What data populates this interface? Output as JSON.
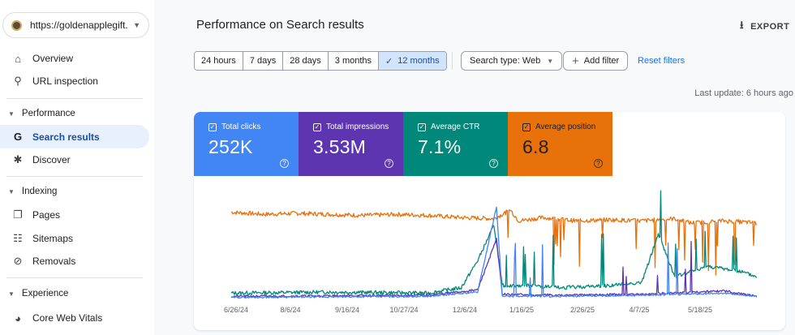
{
  "sidebar": {
    "property_url": "https://goldenapplegift...",
    "items": [
      {
        "label": "Overview",
        "icon": "home-icon"
      },
      {
        "label": "URL inspection",
        "icon": "search-icon"
      }
    ],
    "sections": [
      {
        "label": "Performance",
        "items": [
          {
            "label": "Search results",
            "icon": "google-g-icon",
            "active": true
          },
          {
            "label": "Discover",
            "icon": "asterisk-icon"
          }
        ]
      },
      {
        "label": "Indexing",
        "items": [
          {
            "label": "Pages",
            "icon": "pages-icon"
          },
          {
            "label": "Sitemaps",
            "icon": "sitemap-icon"
          },
          {
            "label": "Removals",
            "icon": "eye-off-icon"
          }
        ]
      },
      {
        "label": "Experience",
        "items": [
          {
            "label": "Core Web Vitals",
            "icon": "gauge-icon"
          }
        ]
      }
    ]
  },
  "header": {
    "title": "Performance on Search results",
    "export_label": "EXPORT"
  },
  "filters": {
    "ranges": [
      "24 hours",
      "7 days",
      "28 days",
      "3 months",
      "12 months"
    ],
    "selected_range": "12 months",
    "search_type": "Search type: Web",
    "add_filter": "Add filter",
    "reset": "Reset filters",
    "last_update": "Last update: 6 hours ago"
  },
  "metrics": [
    {
      "label": "Total clicks",
      "value": "252K",
      "color": "#4285f4"
    },
    {
      "label": "Total impressions",
      "value": "3.53M",
      "color": "#5e35b1"
    },
    {
      "label": "Average CTR",
      "value": "7.1%",
      "color": "#00897b"
    },
    {
      "label": "Average position",
      "value": "6.8",
      "color": "#e8710a"
    }
  ],
  "chart_data": {
    "type": "line",
    "x_tick_labels": [
      "6/26/24",
      "8/6/24",
      "9/16/24",
      "10/27/24",
      "12/6/24",
      "1/16/25",
      "2/26/25",
      "4/7/25",
      "5/18/25"
    ],
    "series_colors": {
      "position": "#e8710a",
      "ctr": "#00897b",
      "impressions": "#5e35b1",
      "clicks": "#4285f4"
    },
    "position_anchors": [
      [
        0,
        0.8
      ],
      [
        40,
        0.78
      ],
      [
        80,
        0.79
      ],
      [
        120,
        0.78
      ],
      [
        160,
        0.77
      ],
      [
        200,
        0.78
      ],
      [
        240,
        0.77
      ],
      [
        280,
        0.75
      ],
      [
        320,
        0.74
      ],
      [
        340,
        0.82
      ],
      [
        350,
        0.72
      ],
      [
        380,
        0.75
      ],
      [
        420,
        0.72
      ],
      [
        460,
        0.73
      ],
      [
        500,
        0.72
      ],
      [
        540,
        0.74
      ],
      [
        560,
        0.7
      ],
      [
        600,
        0.72
      ],
      [
        640,
        0.7
      ]
    ],
    "ctr_anchors": [
      [
        0,
        0.05
      ],
      [
        120,
        0.06
      ],
      [
        240,
        0.05
      ],
      [
        280,
        0.1
      ],
      [
        300,
        0.35
      ],
      [
        320,
        0.68
      ],
      [
        330,
        0.12
      ],
      [
        360,
        0.12
      ],
      [
        400,
        0.1
      ],
      [
        460,
        0.12
      ],
      [
        500,
        0.15
      ],
      [
        520,
        0.6
      ],
      [
        540,
        0.2
      ],
      [
        580,
        0.3
      ],
      [
        620,
        0.25
      ],
      [
        640,
        0.2
      ]
    ],
    "clicks_anchors": [
      [
        0,
        0.01
      ],
      [
        240,
        0.02
      ],
      [
        300,
        0.06
      ],
      [
        323,
        0.85
      ],
      [
        330,
        0.02
      ],
      [
        400,
        0.02
      ],
      [
        500,
        0.03
      ],
      [
        600,
        0.05
      ],
      [
        640,
        0.02
      ]
    ],
    "impressions_anchors": [
      [
        0,
        0.02
      ],
      [
        240,
        0.03
      ],
      [
        300,
        0.08
      ],
      [
        323,
        0.55
      ],
      [
        330,
        0.04
      ],
      [
        400,
        0.03
      ],
      [
        500,
        0.04
      ],
      [
        600,
        0.07
      ],
      [
        640,
        0.02
      ]
    ]
  }
}
